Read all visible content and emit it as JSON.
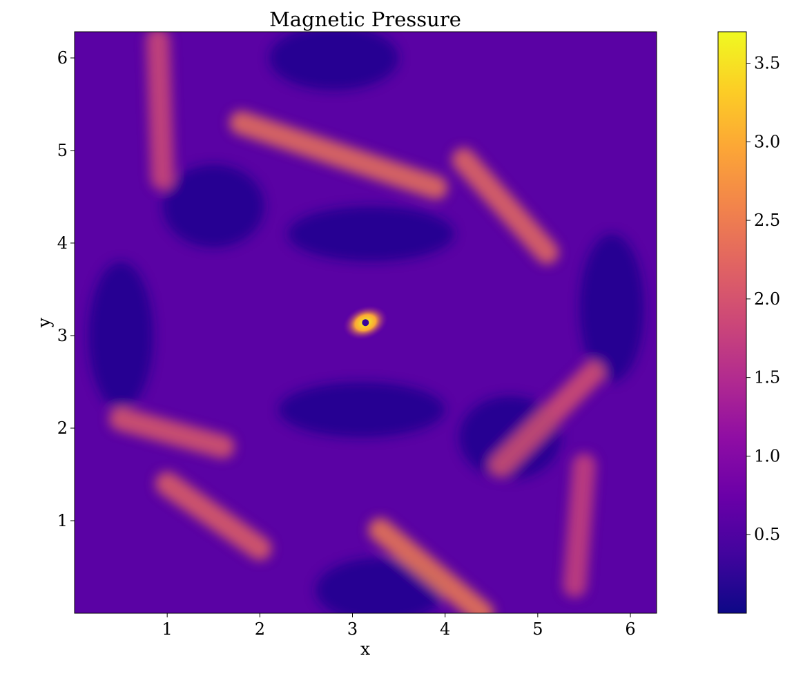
{
  "chart_data": {
    "type": "heatmap",
    "title": "Magnetic Pressure",
    "xlabel": "x",
    "ylabel": "y",
    "xlim": [
      0,
      6.283
    ],
    "ylim": [
      0,
      6.283
    ],
    "xticks": [
      1,
      2,
      3,
      4,
      5,
      6
    ],
    "yticks": [
      1,
      2,
      3,
      4,
      5,
      6
    ],
    "xtick_labels": [
      "1",
      "2",
      "3",
      "4",
      "5",
      "6"
    ],
    "ytick_labels": [
      "1",
      "2",
      "3",
      "4",
      "5",
      "6"
    ],
    "colorbar": {
      "cmap": "plasma",
      "range": [
        0,
        3.7
      ],
      "ticks": [
        0.5,
        1.0,
        1.5,
        2.0,
        2.5,
        3.0,
        3.5
      ],
      "tick_labels": [
        "0.5",
        "1.0",
        "1.5",
        "2.0",
        "2.5",
        "3.0",
        "3.5"
      ]
    },
    "features": {
      "peak": {
        "x": 3.14,
        "y": 3.14,
        "value": 3.7
      },
      "background_value": 0.6,
      "bright_bands": [
        {
          "from": [
            1.0,
            1.4
          ],
          "to": [
            2.0,
            0.7
          ],
          "value": 2.2
        },
        {
          "from": [
            3.3,
            0.9
          ],
          "to": [
            4.4,
            0.0
          ],
          "value": 2.5
        },
        {
          "from": [
            1.8,
            5.3
          ],
          "to": [
            3.9,
            4.6
          ],
          "value": 2.4
        },
        {
          "from": [
            4.2,
            4.9
          ],
          "to": [
            5.1,
            3.9
          ],
          "value": 2.3
        },
        {
          "from": [
            0.5,
            2.1
          ],
          "to": [
            1.6,
            1.8
          ],
          "value": 2.1
        },
        {
          "from": [
            4.6,
            1.6
          ],
          "to": [
            5.6,
            2.6
          ],
          "value": 2.0
        },
        {
          "from": [
            0.95,
            4.7
          ],
          "to": [
            0.9,
            6.2
          ],
          "value": 1.9
        },
        {
          "from": [
            5.4,
            0.3
          ],
          "to": [
            5.5,
            1.6
          ],
          "value": 1.8
        }
      ]
    }
  }
}
